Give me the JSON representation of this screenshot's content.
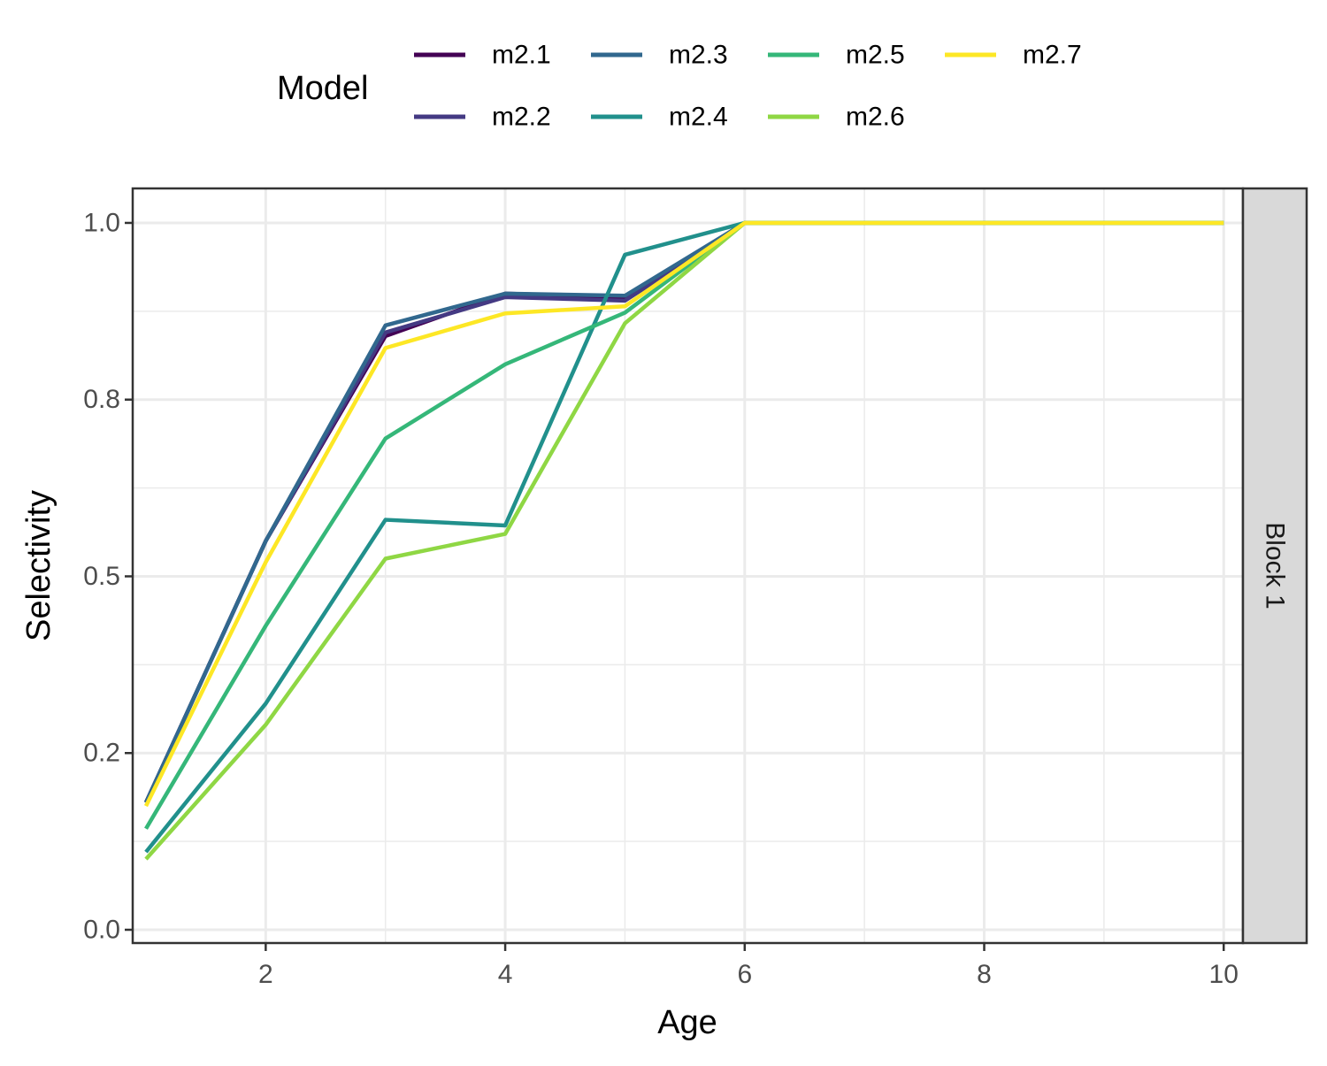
{
  "chart_data": {
    "type": "line",
    "title": "",
    "xlabel": "Age",
    "ylabel": "Selectivity",
    "xlim": [
      1,
      10.05
    ],
    "ylim": [
      0,
      1.03
    ],
    "x_ticks": [
      2,
      4,
      6,
      8,
      10
    ],
    "x_tick_labels": [
      "2",
      "4",
      "6",
      "8",
      "10"
    ],
    "y_ticks": [
      0,
      0.25,
      0.5,
      0.75,
      1.0
    ],
    "y_tick_labels": [
      "0.0",
      "0.2",
      "0.5",
      "0.8",
      "1.0"
    ],
    "grid": true,
    "facet_label": "Block 1",
    "legend": {
      "title": "Model",
      "position": "top"
    },
    "x": [
      1,
      2,
      3,
      4,
      5,
      6,
      7,
      8,
      9,
      10
    ],
    "series": [
      {
        "name": "m2.1",
        "color": "#440154",
        "values": [
          0.18,
          0.55,
          0.84,
          0.9,
          0.895,
          1.0,
          1.0,
          1.0,
          1.0,
          1.0
        ]
      },
      {
        "name": "m2.2",
        "color": "#443A83",
        "values": [
          0.18,
          0.55,
          0.845,
          0.895,
          0.89,
          1.0,
          1.0,
          1.0,
          1.0,
          1.0
        ]
      },
      {
        "name": "m2.3",
        "color": "#31688E",
        "values": [
          0.18,
          0.55,
          0.855,
          0.9,
          0.897,
          1.0,
          1.0,
          1.0,
          1.0,
          1.0
        ]
      },
      {
        "name": "m2.4",
        "color": "#21908C",
        "values": [
          0.11,
          0.32,
          0.58,
          0.572,
          0.955,
          1.0,
          1.0,
          1.0,
          1.0,
          1.0
        ]
      },
      {
        "name": "m2.5",
        "color": "#35B779",
        "values": [
          0.143,
          0.43,
          0.695,
          0.8,
          0.873,
          1.0,
          1.0,
          1.0,
          1.0,
          1.0
        ]
      },
      {
        "name": "m2.6",
        "color": "#8FD744",
        "values": [
          0.1,
          0.29,
          0.525,
          0.56,
          0.858,
          1.0,
          1.0,
          1.0,
          1.0,
          1.0
        ]
      },
      {
        "name": "m2.7",
        "color": "#FDE725",
        "values": [
          0.175,
          0.52,
          0.823,
          0.872,
          0.882,
          1.0,
          1.0,
          1.0,
          1.0,
          1.0
        ]
      }
    ]
  }
}
